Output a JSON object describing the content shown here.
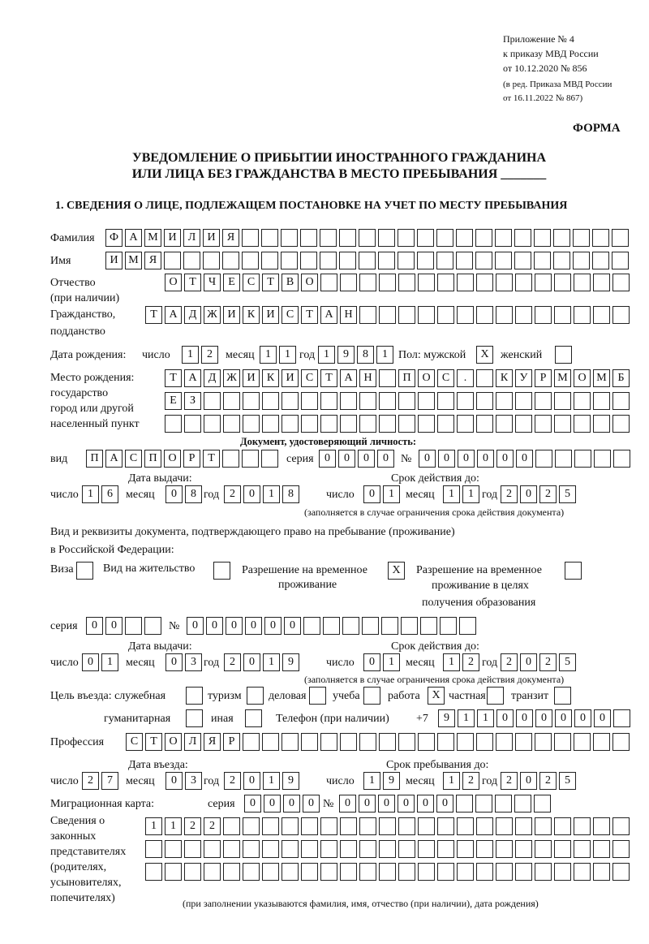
{
  "header": {
    "line1": "Приложение № 4",
    "line2": "к приказу МВД России",
    "line3": "от 10.12.2020 № 856",
    "line4": "(в ред. Приказа МВД России",
    "line5": "от 16.11.2022 № 867)",
    "forma": "ФОРМА"
  },
  "title": {
    "line1": "УВЕДОМЛЕНИЕ О ПРИБЫТИИ ИНОСТРАННОГО ГРАЖДАНИНА",
    "line2": "ИЛИ ЛИЦА БЕЗ ГРАЖДАНСТВА В МЕСТО ПРЕБЫВАНИЯ _______"
  },
  "section1": "1. СВЕДЕНИЯ О ЛИЦЕ, ПОДЛЕЖАЩЕМ ПОСТАНОВКЕ НА УЧЕТ ПО МЕСТУ ПРЕБЫВАНИЯ",
  "labels": {
    "surname": "Фамилия",
    "name": "Имя",
    "patronymic": "Отчество",
    "patronymic2": "(при наличии)",
    "citizenship": "Гражданство,",
    "citizenship2": "подданство",
    "birth_date": "Дата рождения:",
    "day": "число",
    "month": "месяц",
    "year": "год",
    "sex": "Пол: мужской",
    "female": "женский",
    "birth_place": "Место рождения:",
    "bp2": "государство",
    "bp3": "город или другой",
    "bp4": "населенный пункт",
    "id_doc": "Документ, удостоверяющий личность:",
    "kind": "вид",
    "series": "серия",
    "number": "№",
    "issue_date": "Дата выдачи:",
    "valid_until": "Срок действия до:",
    "valid_note": "(заполняется в случае ограничения срока действия документа)",
    "right_doc1": "Вид и реквизиты документа, подтверждающего право на пребывание (проживание)",
    "right_doc2": "в Российской Федерации:",
    "visa": "Виза",
    "residence": "Вид на жительство",
    "trp": "Разрешение на временное",
    "trp2": "проживание",
    "trp_edu": "Разрешение на временное",
    "trp_edu2": "проживание в целях",
    "trp_edu3": "получения образования",
    "purpose": "Цель въезда: служебная",
    "tourism": "туризм",
    "business": "деловая",
    "study": "учеба",
    "work": "работа",
    "private": "частная",
    "transit": "транзит",
    "humanitarian": "гуманитарная",
    "other": "иная",
    "phone": "Телефон (при наличии)",
    "phone_prefix": "+7",
    "profession": "Профессия",
    "entry_date": "Дата въезда:",
    "stay_until": "Срок пребывания до:",
    "migration_card": "Миграционная карта:",
    "reps1": "Сведения о",
    "reps2": "законных",
    "reps3": "представителях",
    "reps4": "(родителях,",
    "reps5": "усыновителях,",
    "reps6": "попечителях)",
    "reps_note": "(при заполнении указываются фамилия, имя, отчество (при наличии), дата рождения)"
  },
  "fields": {
    "surname": "ФАМИЛИЯ",
    "name": "ИМЯ",
    "patronymic": "ОТЧЕСТВО",
    "citizenship": "ТАДЖИКИСТАН",
    "birth_day": "12",
    "birth_month": "11",
    "birth_year": "1981",
    "sex_male": "X",
    "sex_female": "",
    "birth_place1": "ТАДЖИКИСТАН ПОС. КУРМОМБ",
    "birth_place2": "ЕЗ",
    "birth_place3": "",
    "doc_kind": "ПАСПОРТ",
    "doc_series": "0000",
    "doc_number": "000000",
    "doc_issue_day": "16",
    "doc_issue_month": "08",
    "doc_issue_year": "2018",
    "doc_valid_day": "01",
    "doc_valid_month": "11",
    "doc_valid_year": "2025",
    "visa": "",
    "residence": "",
    "trp": "X",
    "trp_edu": "",
    "right_series": "00",
    "right_number": "000000",
    "right_issue_day": "01",
    "right_issue_month": "03",
    "right_issue_year": "2019",
    "right_valid_day": "01",
    "right_valid_month": "12",
    "right_valid_year": "2025",
    "p_service": "",
    "p_tourism": "",
    "p_business": "",
    "p_study": "",
    "p_work": "X",
    "p_private": "",
    "p_transit": "",
    "p_humanitarian": "",
    "p_other": "",
    "phone": "911000000",
    "profession": "СТОЛЯР",
    "entry_day": "27",
    "entry_month": "03",
    "entry_year": "2019",
    "stay_day": "19",
    "stay_month": "12",
    "stay_year": "2025",
    "mc_series": "0000",
    "mc_number": "000000",
    "reps1": "1122",
    "reps2": "",
    "reps3": ""
  }
}
